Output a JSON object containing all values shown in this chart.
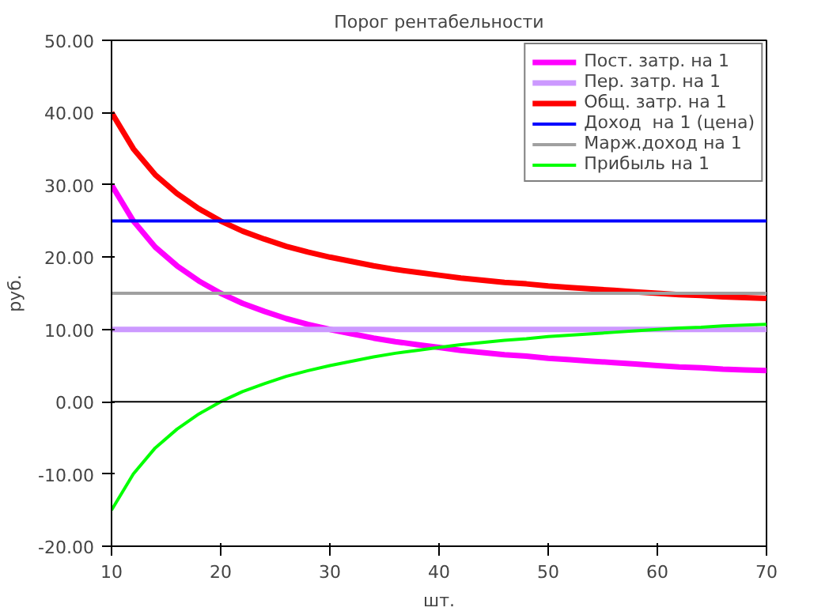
{
  "chart_data": {
    "type": "line",
    "title": "Порог рентабельности",
    "xlabel": "шт.",
    "ylabel": "руб.",
    "x": [
      10,
      12,
      14,
      16,
      18,
      20,
      22,
      24,
      26,
      28,
      30,
      32,
      34,
      36,
      38,
      40,
      42,
      44,
      46,
      48,
      50,
      52,
      54,
      56,
      58,
      60,
      62,
      64,
      66,
      68,
      70
    ],
    "series": [
      {
        "name": "Пост. затр. на 1",
        "color": "#ff00ff",
        "values": [
          30,
          25,
          21.4,
          18.8,
          16.7,
          15,
          13.6,
          12.5,
          11.5,
          10.7,
          10,
          9.4,
          8.8,
          8.3,
          7.9,
          7.5,
          7.1,
          6.8,
          6.5,
          6.3,
          6,
          5.8,
          5.6,
          5.4,
          5.2,
          5,
          4.8,
          4.7,
          4.5,
          4.4,
          4.3
        ]
      },
      {
        "name": "Пер. затр. на 1",
        "color": "#cc99ff",
        "values": [
          10,
          10,
          10,
          10,
          10,
          10,
          10,
          10,
          10,
          10,
          10,
          10,
          10,
          10,
          10,
          10,
          10,
          10,
          10,
          10,
          10,
          10,
          10,
          10,
          10,
          10,
          10,
          10,
          10,
          10,
          10
        ]
      },
      {
        "name": "Общ. затр. на 1",
        "color": "#ff0000",
        "values": [
          40,
          35,
          31.4,
          28.8,
          26.7,
          25,
          23.6,
          22.5,
          21.5,
          20.7,
          20,
          19.4,
          18.8,
          18.3,
          17.9,
          17.5,
          17.1,
          16.8,
          16.5,
          16.3,
          16,
          15.8,
          15.6,
          15.4,
          15.2,
          15,
          14.8,
          14.7,
          14.5,
          14.4,
          14.3
        ]
      },
      {
        "name": "Доход  на 1 (цена)",
        "color": "#0000ff",
        "values": [
          25,
          25,
          25,
          25,
          25,
          25,
          25,
          25,
          25,
          25,
          25,
          25,
          25,
          25,
          25,
          25,
          25,
          25,
          25,
          25,
          25,
          25,
          25,
          25,
          25,
          25,
          25,
          25,
          25,
          25,
          25
        ]
      },
      {
        "name": "Марж.доход на 1",
        "color": "#a0a0a0",
        "values": [
          15,
          15,
          15,
          15,
          15,
          15,
          15,
          15,
          15,
          15,
          15,
          15,
          15,
          15,
          15,
          15,
          15,
          15,
          15,
          15,
          15,
          15,
          15,
          15,
          15,
          15,
          15,
          15,
          15,
          15,
          15
        ]
      },
      {
        "name": "Прибыль на 1",
        "color": "#00ff00",
        "values": [
          -15,
          -10,
          -6.4,
          -3.8,
          -1.7,
          0,
          1.4,
          2.5,
          3.5,
          4.3,
          5,
          5.6,
          6.2,
          6.7,
          7.1,
          7.5,
          7.9,
          8.2,
          8.5,
          8.7,
          9,
          9.2,
          9.4,
          9.6,
          9.8,
          10,
          10.2,
          10.3,
          10.5,
          10.6,
          10.7
        ]
      }
    ],
    "xlim": [
      10,
      70
    ],
    "xticks": [
      10,
      20,
      30,
      40,
      50,
      60,
      70
    ],
    "ylim": [
      -20,
      50
    ],
    "yticks": [
      {
        "value": -20,
        "label": "-20.00"
      },
      {
        "value": -10,
        "label": "-10.00"
      },
      {
        "value": 0,
        "label": "0.00"
      },
      {
        "value": 10,
        "label": "10.00"
      },
      {
        "value": 20,
        "label": "20.00"
      },
      {
        "value": 30,
        "label": "30.00"
      },
      {
        "value": 40,
        "label": "40.00"
      },
      {
        "value": 50,
        "label": "50.00"
      }
    ],
    "ref_lines": [
      {
        "axis": "y",
        "value": 0,
        "color": "#000000"
      }
    ],
    "grid": false,
    "legend": "top right",
    "marker": "none",
    "line_style": "solid"
  }
}
